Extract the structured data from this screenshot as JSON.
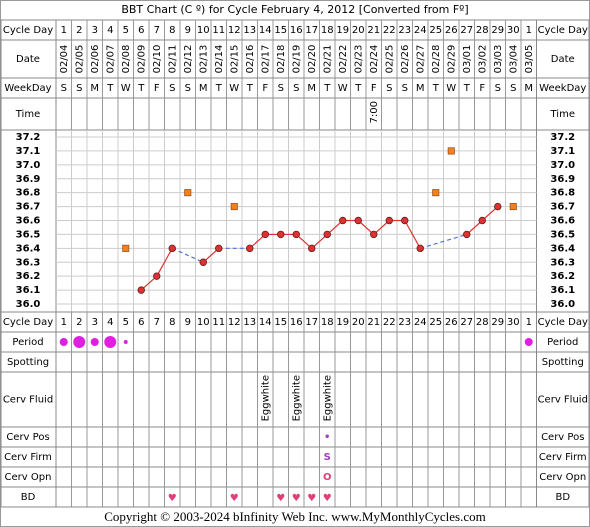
{
  "title": "BBT Chart (C º) for Cycle February 4, 2012  [Converted from Fº]",
  "row_labels": {
    "cycle_day": "Cycle Day",
    "date": "Date",
    "weekday": "WeekDay",
    "time": "Time",
    "period": "Period",
    "spotting": "Spotting",
    "cerv_fluid": "Cerv Fluid",
    "cerv_pos": "Cerv Pos",
    "cerv_firm": "Cerv Firm",
    "cerv_opn": "Cerv Opn",
    "bd": "BD"
  },
  "chart_data": {
    "type": "line",
    "cycle_days": [
      1,
      2,
      3,
      4,
      5,
      6,
      7,
      8,
      9,
      10,
      11,
      12,
      13,
      14,
      15,
      16,
      17,
      18,
      19,
      20,
      21,
      22,
      23,
      24,
      25,
      26,
      27,
      28,
      29,
      30,
      1
    ],
    "dates": [
      "02/04",
      "02/05",
      "02/06",
      "02/07",
      "02/08",
      "02/09",
      "02/10",
      "02/11",
      "02/12",
      "02/13",
      "02/14",
      "02/15",
      "02/16",
      "02/17",
      "02/18",
      "02/19",
      "02/20",
      "02/21",
      "02/22",
      "02/23",
      "02/24",
      "02/25",
      "02/26",
      "02/27",
      "02/28",
      "02/29",
      "03/01",
      "03/02",
      "03/03",
      "03/04",
      "03/05"
    ],
    "weekdays": [
      "S",
      "S",
      "M",
      "T",
      "W",
      "T",
      "F",
      "S",
      "S",
      "M",
      "T",
      "W",
      "T",
      "F",
      "S",
      "S",
      "M",
      "T",
      "W",
      "T",
      "F",
      "S",
      "S",
      "M",
      "T",
      "W",
      "T",
      "F",
      "S",
      "S",
      "M"
    ],
    "times": [
      null,
      null,
      null,
      null,
      null,
      null,
      null,
      null,
      null,
      null,
      null,
      null,
      null,
      null,
      null,
      null,
      null,
      null,
      null,
      null,
      "7:00",
      null,
      null,
      null,
      null,
      null,
      null,
      null,
      null,
      null,
      null
    ],
    "temperatures": [
      null,
      null,
      null,
      null,
      null,
      36.1,
      36.2,
      36.4,
      null,
      36.3,
      36.4,
      null,
      36.4,
      36.5,
      36.5,
      36.5,
      36.4,
      36.5,
      36.6,
      36.6,
      36.5,
      36.6,
      36.6,
      36.4,
      null,
      null,
      36.5,
      36.6,
      36.7,
      null,
      null
    ],
    "discarded": [
      null,
      null,
      null,
      null,
      36.4,
      null,
      null,
      null,
      36.8,
      null,
      null,
      36.7,
      null,
      null,
      null,
      null,
      null,
      null,
      null,
      null,
      null,
      null,
      null,
      null,
      36.8,
      37.1,
      null,
      null,
      null,
      36.7,
      null
    ],
    "ylim": [
      36.0,
      37.2
    ],
    "yticks": [
      {
        "value": 37.2,
        "label": "37.2"
      },
      37.1,
      {
        "value": 37.0,
        "label": "37.0"
      },
      36.9,
      36.8,
      36.7,
      36.6,
      36.5,
      36.4,
      36.3,
      36.2,
      36.1,
      {
        "value": 36.0,
        "label": "36.0"
      }
    ],
    "grid": true,
    "line_color": "#e03030",
    "gap_color": "#5070e0",
    "discarded_color": "#f08020",
    "period": [
      2,
      3,
      2,
      3,
      1,
      null,
      null,
      null,
      null,
      null,
      null,
      null,
      null,
      null,
      null,
      null,
      null,
      null,
      null,
      null,
      null,
      null,
      null,
      null,
      null,
      null,
      null,
      null,
      null,
      null,
      2
    ],
    "period_color": "#e020e0",
    "cerv_fluid": [
      null,
      null,
      null,
      null,
      null,
      null,
      null,
      null,
      null,
      null,
      null,
      null,
      null,
      "Eggwhite",
      null,
      "Eggwhite",
      null,
      "Eggwhite",
      null,
      null,
      null,
      null,
      null,
      null,
      null,
      null,
      null,
      null,
      null,
      null,
      null
    ],
    "cerv_pos": [
      null,
      null,
      null,
      null,
      null,
      null,
      null,
      null,
      null,
      null,
      null,
      null,
      null,
      null,
      null,
      null,
      null,
      "•",
      null,
      null,
      null,
      null,
      null,
      null,
      null,
      null,
      null,
      null,
      null,
      null,
      null
    ],
    "cerv_firm": [
      null,
      null,
      null,
      null,
      null,
      null,
      null,
      null,
      null,
      null,
      null,
      null,
      null,
      null,
      null,
      null,
      null,
      "S",
      null,
      null,
      null,
      null,
      null,
      null,
      null,
      null,
      null,
      null,
      null,
      null,
      null
    ],
    "cerv_opn": [
      null,
      null,
      null,
      null,
      null,
      null,
      null,
      null,
      null,
      null,
      null,
      null,
      null,
      null,
      null,
      null,
      null,
      "O",
      null,
      null,
      null,
      null,
      null,
      null,
      null,
      null,
      null,
      null,
      null,
      null,
      null
    ],
    "bd": [
      null,
      null,
      null,
      null,
      null,
      null,
      null,
      "♥",
      null,
      null,
      null,
      "♥",
      null,
      null,
      "♥",
      "♥",
      "♥",
      "♥",
      null,
      null,
      null,
      null,
      null,
      null,
      null,
      null,
      null,
      null,
      null,
      null,
      null
    ]
  },
  "footer": "Copyright © 2003-2024 bInfinity Web Inc.     www.MyMonthlyCycles.com"
}
